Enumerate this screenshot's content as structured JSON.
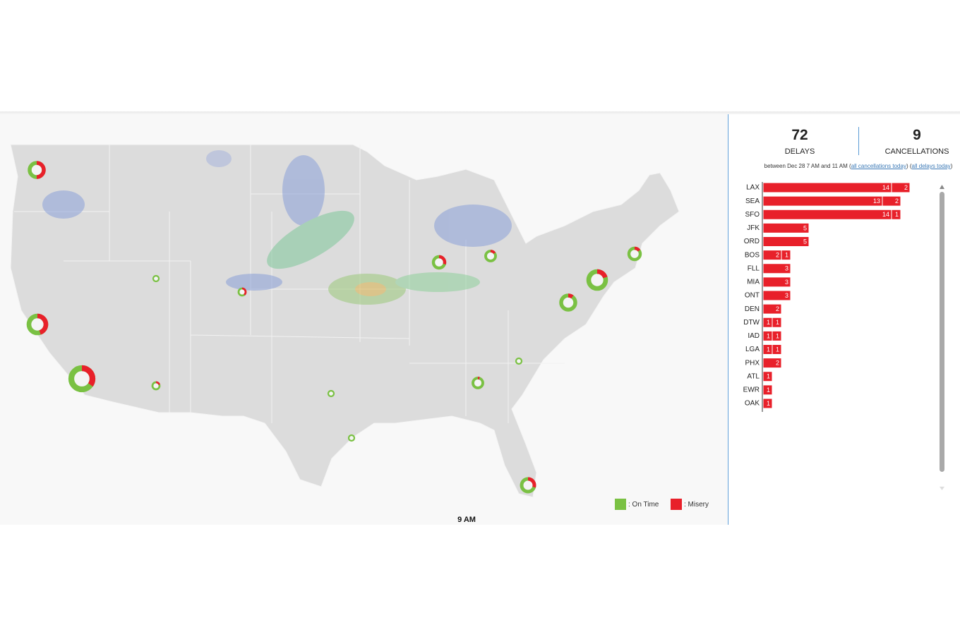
{
  "summary": {
    "delays": {
      "value": "72",
      "label": "DELAYS"
    },
    "cancellations": {
      "value": "9",
      "label": "CANCELLATIONS"
    },
    "note": {
      "text": "between Dec 28 7 AM and 11 AM (",
      "link1": "all cancellations today",
      "mid": ") (",
      "link2": "all delays today",
      "end": ")"
    }
  },
  "map": {
    "time": "9 AM",
    "legend": [
      {
        "label": ": On Time",
        "color": "#7ac143"
      },
      {
        "label": ": Misery",
        "color": "#e8202a"
      }
    ],
    "markers": [
      {
        "misery": 50
      },
      {
        "misery": 45
      },
      {
        "misery": 35
      },
      {
        "misery": 20
      },
      {
        "misery": 40
      },
      {
        "misery": 30
      },
      {
        "misery": 15
      },
      {
        "misery": 15
      },
      {
        "misery": 20
      },
      {
        "misery": 10
      },
      {
        "misery": 5
      },
      {
        "misery": 30
      },
      {
        "misery": 0
      },
      {
        "misery": 0
      },
      {
        "misery": 0
      },
      {
        "misery": 0
      }
    ]
  },
  "chart_data": {
    "type": "bar",
    "orientation": "horizontal",
    "categories": [
      "LAX",
      "SEA",
      "SFO",
      "JFK",
      "ORD",
      "BOS",
      "FLL",
      "MIA",
      "ONT",
      "DEN",
      "DTW",
      "IAD",
      "LGA",
      "PHX",
      "ATL",
      "EWR",
      "OAK"
    ],
    "series": [
      {
        "color": "#e8202a",
        "values": [
          14,
          13,
          14,
          5,
          5,
          2,
          3,
          3,
          3,
          2,
          1,
          1,
          1,
          2,
          1,
          1,
          1
        ]
      },
      {
        "color": "#e8202a",
        "values": [
          2,
          2,
          1,
          null,
          null,
          1,
          null,
          null,
          null,
          null,
          1,
          1,
          1,
          null,
          null,
          null,
          null
        ]
      }
    ]
  }
}
